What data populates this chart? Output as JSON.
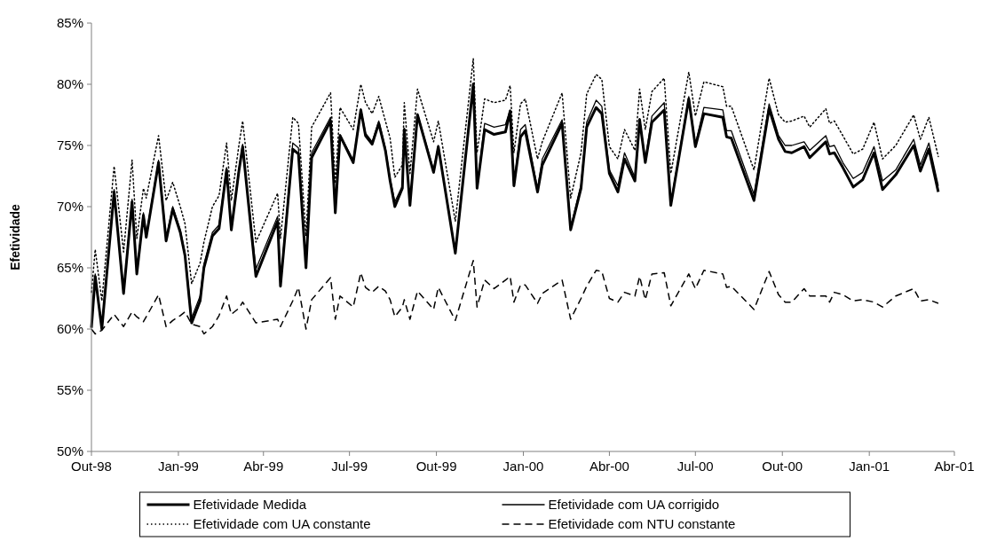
{
  "chart_data": {
    "type": "line",
    "ylabel": "Efetividade",
    "legend": "bottom",
    "grid": false,
    "marker": "none",
    "xlim": [
      "1998-10-01",
      "2001-04-01"
    ],
    "xticks": [
      {
        "value": "1998-10-01",
        "label": "Out-98"
      },
      {
        "value": "1999-01-01",
        "label": "Jan-99"
      },
      {
        "value": "1999-04-01",
        "label": "Abr-99"
      },
      {
        "value": "1999-07-01",
        "label": "Jul-99"
      },
      {
        "value": "1999-10-01",
        "label": "Out-99"
      },
      {
        "value": "2000-01-01",
        "label": "Jan-00"
      },
      {
        "value": "2000-04-01",
        "label": "Abr-00"
      },
      {
        "value": "2000-07-01",
        "label": "Jul-00"
      },
      {
        "value": "2000-10-01",
        "label": "Out-00"
      },
      {
        "value": "2001-01-01",
        "label": "Jan-01"
      },
      {
        "value": "2001-04-01",
        "label": "Abr-01"
      }
    ],
    "ylim": [
      50,
      85
    ],
    "yticks": [
      {
        "value": 50,
        "label": "50%"
      },
      {
        "value": 55,
        "label": "55%"
      },
      {
        "value": 60,
        "label": "60%"
      },
      {
        "value": 65,
        "label": "65%"
      },
      {
        "value": 70,
        "label": "70%"
      },
      {
        "value": 75,
        "label": "75%"
      },
      {
        "value": 80,
        "label": "80%"
      },
      {
        "value": 85,
        "label": "85%"
      }
    ],
    "x": [
      "1998-10-01",
      "1998-10-05",
      "1998-10-12",
      "1998-10-25",
      "1998-11-04",
      "1998-11-13",
      "1998-11-18",
      "1998-11-25",
      "1998-11-28",
      "1998-12-11",
      "1998-12-19",
      "1998-12-26",
      "1999-01-03",
      "1999-01-08",
      "1999-01-15",
      "1999-01-24",
      "1999-01-28",
      "1999-02-06",
      "1999-02-13",
      "1999-02-21",
      "1999-02-26",
      "1999-03-06",
      "1999-03-10",
      "1999-03-24",
      "1999-04-16",
      "1999-04-19",
      "1999-05-02",
      "1999-05-08",
      "1999-05-16",
      "1999-05-22",
      "1999-06-11",
      "1999-06-16",
      "1999-06-21",
      "1999-07-05",
      "1999-07-13",
      "1999-07-18",
      "1999-07-25",
      "1999-08-01",
      "1999-08-08",
      "1999-08-13",
      "1999-08-18",
      "1999-08-26",
      "1999-08-28",
      "1999-09-03",
      "1999-09-11",
      "1999-09-28",
      "1999-10-03",
      "1999-10-21",
      "1999-11-09",
      "1999-11-13",
      "1999-11-21",
      "1999-12-01",
      "1999-12-13",
      "1999-12-18",
      "1999-12-22",
      "1999-12-29",
      "2000-01-03",
      "2000-01-16",
      "2000-01-21",
      "2000-02-11",
      "2000-02-20",
      "2000-03-02",
      "2000-03-08",
      "2000-03-18",
      "2000-03-24",
      "2000-04-01",
      "2000-04-10",
      "2000-04-17",
      "2000-04-28",
      "2000-05-03",
      "2000-05-09",
      "2000-05-16",
      "2000-05-29",
      "2000-06-05",
      "2000-06-24",
      "2000-07-01",
      "2000-07-10",
      "2000-07-30",
      "2000-08-03",
      "2000-08-08",
      "2000-09-01",
      "2000-09-17",
      "2000-09-27",
      "2000-10-04",
      "2000-10-11",
      "2000-10-24",
      "2000-10-30",
      "2000-11-16",
      "2000-11-20",
      "2000-11-25",
      "2000-12-04",
      "2000-12-15",
      "2000-12-25",
      "2001-01-06",
      "2001-01-15",
      "2001-01-29",
      "2001-02-17",
      "2001-02-24",
      "2001-03-05",
      "2001-03-15"
    ],
    "series": [
      {
        "name": "Efetividade Medida",
        "color": "#000000",
        "line_style": "solid",
        "values": [
          60.1,
          64.3,
          60.0,
          71.2,
          62.9,
          70.4,
          64.5,
          69.3,
          67.5,
          73.6,
          67.2,
          69.8,
          67.9,
          66.0,
          60.5,
          62.3,
          65.0,
          67.6,
          68.2,
          73.0,
          68.1,
          72.9,
          74.9,
          64.3,
          68.8,
          63.5,
          74.7,
          74.3,
          65.0,
          74.0,
          77.0,
          69.5,
          75.8,
          73.6,
          77.9,
          75.8,
          75.1,
          76.8,
          74.6,
          72.1,
          70.0,
          71.5,
          76.3,
          70.1,
          77.5,
          72.8,
          74.9,
          66.2,
          80.0,
          71.5,
          76.3,
          75.9,
          76.1,
          77.8,
          71.7,
          75.7,
          76.2,
          71.2,
          73.4,
          76.8,
          68.1,
          71.5,
          76.5,
          78.1,
          77.6,
          72.7,
          71.2,
          73.9,
          72.1,
          77.1,
          73.6,
          76.9,
          77.9,
          70.1,
          78.8,
          74.9,
          77.6,
          77.3,
          75.7,
          75.6,
          70.5,
          78.0,
          75.5,
          74.5,
          74.4,
          74.9,
          74.0,
          75.3,
          74.3,
          74.4,
          73.2,
          71.6,
          72.2,
          74.4,
          71.4,
          72.6,
          75.0,
          72.9,
          74.7,
          71.2
        ]
      },
      {
        "name": "Efetividade com UA corrigido",
        "color": "#000000",
        "line_style": "solid",
        "values": [
          60.2,
          64.5,
          60.1,
          71.4,
          63.1,
          70.6,
          64.7,
          69.5,
          67.7,
          73.8,
          67.4,
          70.0,
          68.1,
          66.2,
          60.9,
          62.7,
          65.3,
          67.9,
          68.5,
          73.2,
          68.3,
          73.1,
          75.1,
          64.9,
          69.2,
          63.7,
          75.2,
          74.8,
          65.3,
          74.4,
          77.3,
          69.6,
          75.9,
          73.8,
          78.0,
          76.0,
          75.3,
          77.0,
          74.8,
          72.3,
          70.4,
          71.7,
          76.4,
          70.2,
          77.6,
          73.0,
          75.0,
          66.3,
          80.1,
          71.6,
          76.8,
          76.5,
          76.7,
          77.9,
          71.8,
          76.3,
          76.7,
          71.5,
          73.9,
          77.1,
          68.3,
          71.8,
          76.9,
          78.7,
          78.2,
          73.0,
          71.7,
          74.4,
          72.4,
          77.2,
          73.8,
          77.4,
          78.5,
          70.3,
          79.0,
          75.1,
          78.1,
          77.9,
          76.2,
          76.2,
          71.0,
          78.4,
          75.8,
          75.0,
          75.0,
          75.3,
          74.6,
          75.8,
          74.9,
          75.0,
          73.6,
          72.3,
          72.8,
          74.9,
          72.1,
          73.0,
          75.5,
          73.4,
          75.2,
          71.7
        ]
      },
      {
        "name": "Efetividade com UA constante",
        "color": "#000000",
        "line_style": "dotted",
        "values": [
          63.0,
          66.5,
          62.3,
          73.3,
          66.3,
          73.8,
          67.4,
          71.5,
          70.7,
          75.8,
          70.5,
          72.0,
          70.0,
          68.6,
          63.7,
          65.4,
          67.1,
          70.0,
          70.9,
          75.2,
          70.5,
          75.0,
          77.0,
          67.1,
          71.1,
          67.4,
          77.3,
          76.8,
          67.6,
          76.5,
          79.3,
          71.9,
          78.1,
          76.3,
          80.0,
          78.5,
          77.6,
          79.0,
          77.0,
          75.6,
          72.4,
          73.4,
          78.5,
          72.7,
          79.6,
          75.3,
          77.0,
          68.8,
          82.1,
          74.4,
          78.8,
          78.5,
          78.7,
          79.9,
          74.4,
          78.4,
          78.8,
          73.9,
          75.3,
          79.3,
          70.7,
          74.4,
          79.2,
          80.8,
          80.4,
          74.9,
          73.9,
          76.3,
          74.6,
          79.6,
          76.3,
          79.4,
          80.5,
          72.7,
          81.0,
          77.4,
          80.2,
          79.8,
          78.2,
          78.2,
          73.0,
          80.5,
          77.5,
          76.9,
          77.0,
          77.4,
          76.5,
          78.0,
          76.8,
          77.0,
          75.8,
          74.3,
          74.7,
          76.9,
          73.9,
          75.0,
          77.5,
          75.5,
          77.3,
          74.1
        ]
      },
      {
        "name": "Efetividade com NTU constante",
        "color": "#000000",
        "line_style": "dashed",
        "values": [
          60.0,
          59.6,
          59.9,
          61.2,
          60.2,
          61.4,
          61.0,
          60.6,
          61.0,
          62.8,
          60.2,
          60.7,
          61.1,
          61.4,
          60.4,
          60.2,
          59.6,
          60.2,
          61.1,
          62.7,
          61.2,
          61.7,
          62.2,
          60.5,
          60.8,
          60.2,
          62.3,
          63.4,
          60.0,
          62.4,
          64.2,
          60.8,
          62.7,
          61.8,
          64.6,
          63.4,
          63.0,
          63.5,
          63.1,
          62.4,
          61.0,
          61.8,
          62.4,
          60.8,
          63.1,
          61.6,
          63.4,
          60.7,
          65.6,
          61.8,
          64.0,
          63.3,
          64.0,
          64.3,
          62.2,
          63.6,
          63.6,
          62.1,
          62.9,
          64.0,
          60.8,
          62.5,
          63.5,
          64.8,
          64.7,
          62.5,
          62.2,
          63.0,
          62.7,
          64.3,
          62.4,
          64.5,
          64.6,
          61.9,
          64.5,
          63.3,
          64.8,
          64.5,
          63.4,
          63.5,
          61.6,
          64.7,
          62.8,
          62.2,
          62.2,
          63.3,
          62.7,
          62.7,
          62.2,
          63.0,
          62.8,
          62.3,
          62.4,
          62.2,
          61.8,
          62.7,
          63.3,
          62.3,
          62.4,
          62.1
        ]
      }
    ]
  }
}
